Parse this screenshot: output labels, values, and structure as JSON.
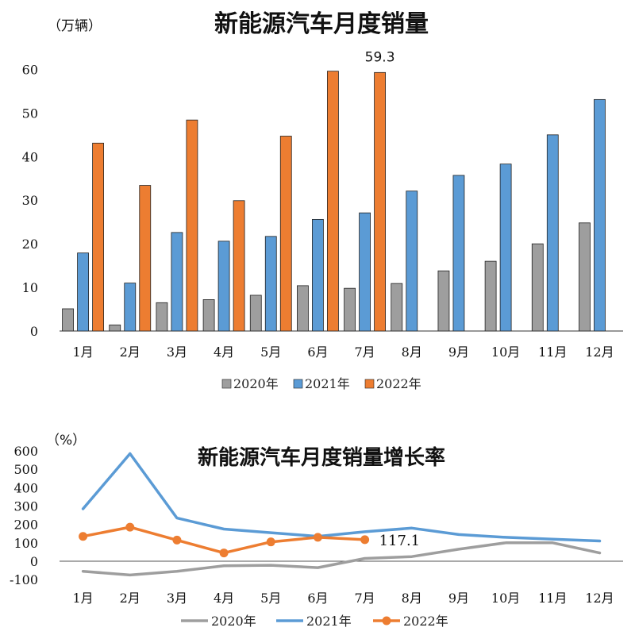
{
  "colors": {
    "s2020": "#9e9e9e",
    "s2021": "#5b9bd5",
    "s2022": "#ed7d31"
  },
  "chart_data": [
    {
      "type": "bar",
      "title": "新能源汽车月度销量",
      "unit_label": "（万辆）",
      "categories": [
        "1月",
        "2月",
        "3月",
        "4月",
        "5月",
        "6月",
        "7月",
        "8月",
        "9月",
        "10月",
        "11月",
        "12月"
      ],
      "yticks": [
        "0",
        "10",
        "20",
        "30",
        "40",
        "50",
        "60"
      ],
      "ylim": [
        0,
        65
      ],
      "series": [
        {
          "name": "2020年",
          "values": [
            5.1,
            1.4,
            6.5,
            7.2,
            8.2,
            10.4,
            9.8,
            10.9,
            13.8,
            16.0,
            20.0,
            24.8
          ]
        },
        {
          "name": "2021年",
          "values": [
            17.9,
            11.0,
            22.6,
            20.6,
            21.7,
            25.6,
            27.1,
            32.1,
            35.7,
            38.3,
            45.0,
            53.1
          ]
        },
        {
          "name": "2022年",
          "values": [
            43.1,
            33.4,
            48.4,
            29.9,
            44.7,
            59.6,
            59.3,
            null,
            null,
            null,
            null,
            null
          ]
        }
      ],
      "annotation": {
        "text": "59.3",
        "category_index": 6,
        "series_index": 2
      },
      "legend_position": "bottom",
      "grid": false
    },
    {
      "type": "line",
      "title": "新能源汽车月度销量增长率",
      "unit_label": "（%）",
      "categories": [
        "1月",
        "2月",
        "3月",
        "4月",
        "5月",
        "6月",
        "7月",
        "8月",
        "9月",
        "10月",
        "11月",
        "12月"
      ],
      "yticks": [
        "-100",
        "0",
        "100",
        "200",
        "300",
        "400",
        "500",
        "600"
      ],
      "ylim": [
        -100,
        600
      ],
      "series": [
        {
          "name": "2020年",
          "values": [
            -55,
            -75,
            -55,
            -25,
            -22,
            -35,
            15,
            25,
            65,
            100,
            100,
            45
          ]
        },
        {
          "name": "2021年",
          "values": [
            285,
            585,
            235,
            175,
            155,
            135,
            160,
            180,
            145,
            130,
            120,
            110
          ]
        },
        {
          "name": "2022年",
          "values": [
            135,
            185,
            115,
            45,
            105,
            130,
            117.1,
            null,
            null,
            null,
            null,
            null
          ]
        }
      ],
      "annotation": {
        "text": "117.1",
        "category_index": 6,
        "series_index": 2
      },
      "legend_position": "bottom",
      "grid": false
    }
  ]
}
